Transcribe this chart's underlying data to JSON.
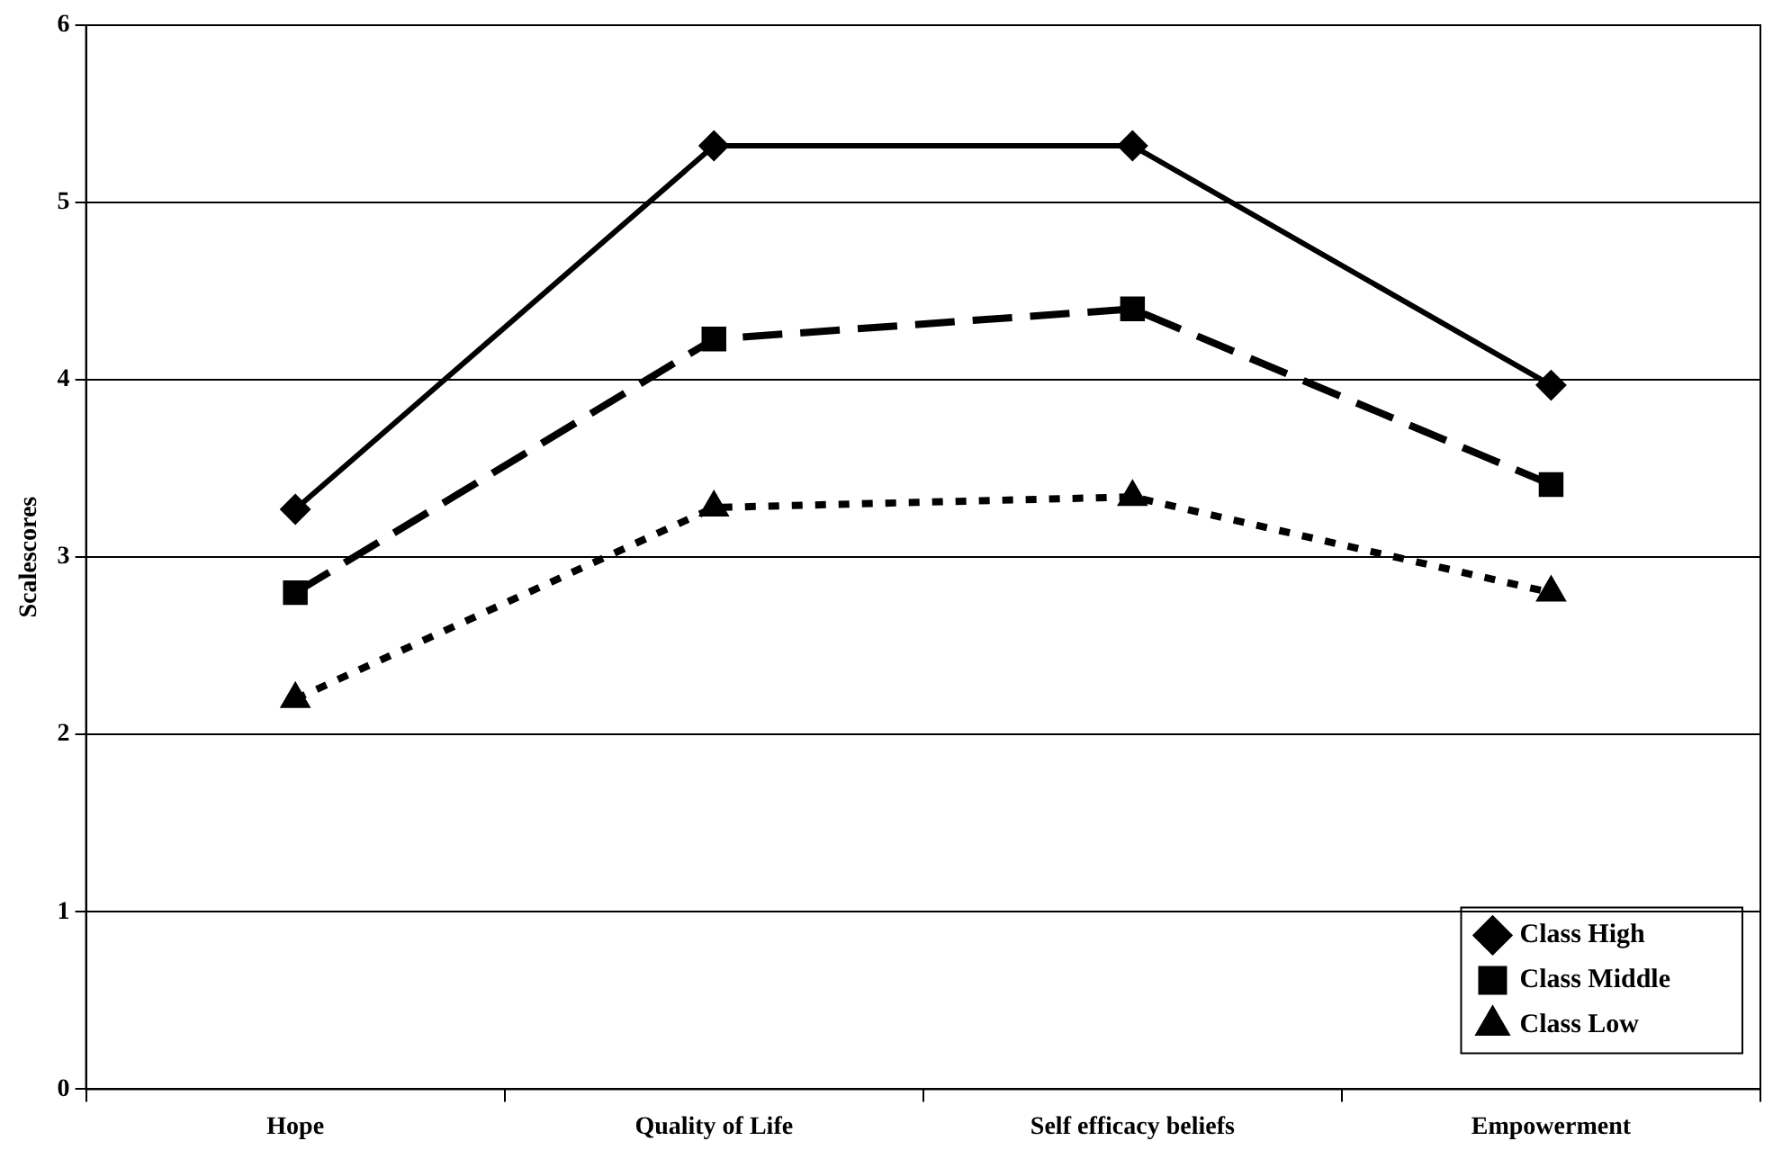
{
  "chart_data": {
    "type": "line",
    "ylabel": "Scalescores",
    "categories": [
      "Hope",
      "Quality of Life",
      "Self efficacy beliefs",
      "Empowerment"
    ],
    "series": [
      {
        "name": "Class High",
        "color": "#000000",
        "marker": "diamond",
        "line_style": "solid",
        "values": [
          3.27,
          5.32,
          5.32,
          3.97
        ]
      },
      {
        "name": "Class Middle",
        "color": "#000000",
        "marker": "square",
        "line_style": "dashed",
        "values": [
          2.8,
          4.23,
          4.4,
          3.41
        ]
      },
      {
        "name": "Class Low",
        "color": "#000000",
        "marker": "triangle",
        "line_style": "dotted",
        "values": [
          2.2,
          3.28,
          3.34,
          2.8
        ]
      }
    ],
    "ylim": [
      0,
      6
    ],
    "yticks": [
      0,
      1,
      2,
      3,
      4,
      5,
      6
    ],
    "grid": "y",
    "legend": "bottom right"
  }
}
